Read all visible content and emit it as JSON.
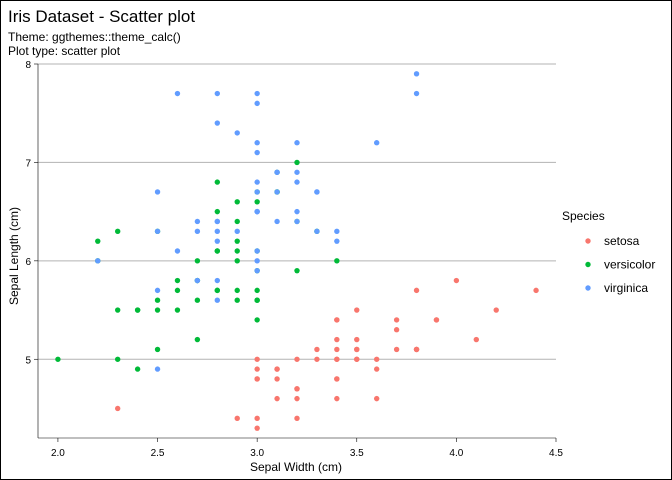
{
  "chart_data": {
    "type": "scatter",
    "title": "Iris Dataset - Scatter plot",
    "subtitle_lines": [
      "Theme: ggthemes::theme_calc()",
      "Plot type: scatter plot"
    ],
    "xlabel": "Sepal Width (cm)",
    "ylabel": "Sepal Length (cm)",
    "xlim": [
      1.9,
      4.5
    ],
    "ylim": [
      4.2,
      8.0
    ],
    "x_ticks": [
      2.0,
      2.5,
      3.0,
      3.5,
      4.0,
      4.5
    ],
    "x_tick_labels": [
      "2.0",
      "2.5",
      "3.0",
      "3.5",
      "4.0",
      "4.5"
    ],
    "y_ticks": [
      5,
      6,
      7,
      8
    ],
    "y_tick_labels": [
      "5",
      "6",
      "7",
      "8"
    ],
    "grid": "horizontal-major",
    "legend_title": "Species",
    "legend_position": "right",
    "series": [
      {
        "name": "setosa",
        "color": "#F8766D",
        "points": [
          [
            3.5,
            5.1
          ],
          [
            3.0,
            4.9
          ],
          [
            3.2,
            4.7
          ],
          [
            3.1,
            4.6
          ],
          [
            3.6,
            5.0
          ],
          [
            3.9,
            5.4
          ],
          [
            3.4,
            4.6
          ],
          [
            3.4,
            5.0
          ],
          [
            2.9,
            4.4
          ],
          [
            3.1,
            4.9
          ],
          [
            3.7,
            5.4
          ],
          [
            3.4,
            4.8
          ],
          [
            3.0,
            4.8
          ],
          [
            3.0,
            4.3
          ],
          [
            4.0,
            5.8
          ],
          [
            4.4,
            5.7
          ],
          [
            3.9,
            5.4
          ],
          [
            3.5,
            5.1
          ],
          [
            3.8,
            5.7
          ],
          [
            3.8,
            5.1
          ],
          [
            3.4,
            5.4
          ],
          [
            3.7,
            5.1
          ],
          [
            3.6,
            4.6
          ],
          [
            3.3,
            5.1
          ],
          [
            3.4,
            4.8
          ],
          [
            3.0,
            5.0
          ],
          [
            3.4,
            5.0
          ],
          [
            3.5,
            5.2
          ],
          [
            3.4,
            5.2
          ],
          [
            3.2,
            4.7
          ],
          [
            3.1,
            4.8
          ],
          [
            3.4,
            5.4
          ],
          [
            4.1,
            5.2
          ],
          [
            4.2,
            5.5
          ],
          [
            3.1,
            4.9
          ],
          [
            3.2,
            5.0
          ],
          [
            3.5,
            5.5
          ],
          [
            3.6,
            4.9
          ],
          [
            3.0,
            4.4
          ],
          [
            3.4,
            5.1
          ],
          [
            3.5,
            5.0
          ],
          [
            2.3,
            4.5
          ],
          [
            3.2,
            4.4
          ],
          [
            3.5,
            5.0
          ],
          [
            3.8,
            5.1
          ],
          [
            3.0,
            4.8
          ],
          [
            3.8,
            5.1
          ],
          [
            3.2,
            4.6
          ],
          [
            3.7,
            5.3
          ],
          [
            3.3,
            5.0
          ]
        ]
      },
      {
        "name": "versicolor",
        "color": "#00BA38",
        "points": [
          [
            3.2,
            7.0
          ],
          [
            3.2,
            6.4
          ],
          [
            3.1,
            6.9
          ],
          [
            2.3,
            5.5
          ],
          [
            2.8,
            6.5
          ],
          [
            2.8,
            5.7
          ],
          [
            3.3,
            6.3
          ],
          [
            2.4,
            4.9
          ],
          [
            2.9,
            6.6
          ],
          [
            2.7,
            5.2
          ],
          [
            2.0,
            5.0
          ],
          [
            3.0,
            5.9
          ],
          [
            2.2,
            6.0
          ],
          [
            2.9,
            6.1
          ],
          [
            2.9,
            5.6
          ],
          [
            3.1,
            6.7
          ],
          [
            3.0,
            5.6
          ],
          [
            2.7,
            5.8
          ],
          [
            2.2,
            6.2
          ],
          [
            2.5,
            5.6
          ],
          [
            3.2,
            5.9
          ],
          [
            2.8,
            6.1
          ],
          [
            2.5,
            6.3
          ],
          [
            2.8,
            6.1
          ],
          [
            2.9,
            6.4
          ],
          [
            3.0,
            6.6
          ],
          [
            2.8,
            6.8
          ],
          [
            3.0,
            6.7
          ],
          [
            2.9,
            6.0
          ],
          [
            2.6,
            5.7
          ],
          [
            2.4,
            5.5
          ],
          [
            2.4,
            5.5
          ],
          [
            2.7,
            5.8
          ],
          [
            2.7,
            6.0
          ],
          [
            3.0,
            5.4
          ],
          [
            3.4,
            6.0
          ],
          [
            3.1,
            6.7
          ],
          [
            2.3,
            6.3
          ],
          [
            3.0,
            5.6
          ],
          [
            2.5,
            5.5
          ],
          [
            2.6,
            5.5
          ],
          [
            3.0,
            6.1
          ],
          [
            2.6,
            5.8
          ],
          [
            2.3,
            5.0
          ],
          [
            2.7,
            5.6
          ],
          [
            3.0,
            5.7
          ],
          [
            2.9,
            5.7
          ],
          [
            2.9,
            6.2
          ],
          [
            2.5,
            5.1
          ],
          [
            2.8,
            5.7
          ]
        ]
      },
      {
        "name": "virginica",
        "color": "#619CFF",
        "points": [
          [
            3.3,
            6.3
          ],
          [
            2.7,
            5.8
          ],
          [
            3.0,
            7.1
          ],
          [
            2.9,
            6.3
          ],
          [
            3.0,
            6.5
          ],
          [
            3.0,
            7.6
          ],
          [
            2.5,
            4.9
          ],
          [
            2.9,
            7.3
          ],
          [
            2.5,
            6.7
          ],
          [
            3.6,
            7.2
          ],
          [
            3.2,
            6.5
          ],
          [
            2.7,
            6.4
          ],
          [
            3.0,
            6.8
          ],
          [
            2.5,
            5.7
          ],
          [
            2.8,
            5.8
          ],
          [
            3.2,
            6.4
          ],
          [
            3.0,
            6.5
          ],
          [
            3.8,
            7.7
          ],
          [
            2.6,
            7.7
          ],
          [
            2.2,
            6.0
          ],
          [
            3.2,
            6.9
          ],
          [
            2.8,
            5.6
          ],
          [
            2.8,
            7.7
          ],
          [
            2.7,
            6.3
          ],
          [
            3.3,
            6.7
          ],
          [
            3.2,
            7.2
          ],
          [
            2.8,
            6.2
          ],
          [
            3.0,
            6.1
          ],
          [
            2.8,
            6.4
          ],
          [
            3.0,
            7.2
          ],
          [
            2.8,
            7.4
          ],
          [
            3.8,
            7.9
          ],
          [
            2.8,
            6.4
          ],
          [
            2.8,
            6.3
          ],
          [
            2.6,
            6.1
          ],
          [
            3.0,
            7.7
          ],
          [
            3.4,
            6.3
          ],
          [
            3.1,
            6.4
          ],
          [
            3.0,
            6.0
          ],
          [
            3.1,
            6.9
          ],
          [
            3.1,
            6.7
          ],
          [
            3.1,
            6.9
          ],
          [
            2.7,
            5.8
          ],
          [
            3.2,
            6.8
          ],
          [
            3.3,
            6.7
          ],
          [
            3.0,
            6.7
          ],
          [
            2.5,
            6.3
          ],
          [
            3.0,
            6.5
          ],
          [
            3.4,
            6.2
          ],
          [
            3.0,
            5.9
          ]
        ]
      }
    ]
  }
}
